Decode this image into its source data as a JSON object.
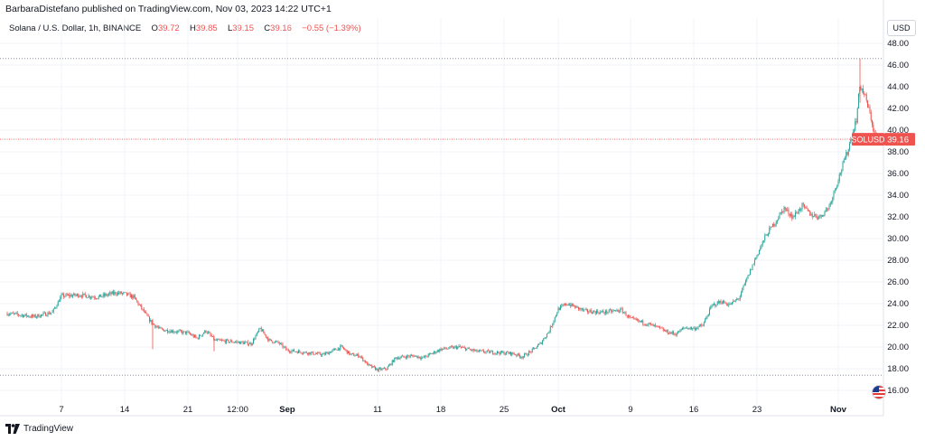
{
  "header": {
    "publisher": "BarbaraDistefano published on TradingView.com, Nov 03, 2023 14:22 UTC+1"
  },
  "legend": {
    "symbol": "Solana / U.S. Dollar, 1h, BINANCE",
    "o_label": "O",
    "o_value": "39.72",
    "h_label": "H",
    "h_value": "39.85",
    "l_label": "L",
    "l_value": "39.15",
    "c_label": "C",
    "c_value": "39.16",
    "change": "−0.55 (−1.39%)"
  },
  "currency_button": "USD",
  "price_tag": {
    "symbol": "SOLUSD",
    "value": "39.16"
  },
  "brand": "TradingView",
  "icons": {
    "logo": "tradingview-logo-icon",
    "flag": "us-flag-icon"
  },
  "colors": {
    "up": "#26a69a",
    "down": "#ef5350",
    "grid": "#f0f3fa",
    "axis_text": "#131722",
    "price_line": "#ef5350",
    "dotted": "#787b86"
  },
  "chart_data": {
    "type": "candlestick",
    "timeframe": "1h",
    "y_axis": {
      "min": 15,
      "max": 48.5,
      "ticks": [
        16,
        18,
        20,
        22,
        24,
        26,
        28,
        30,
        32,
        34,
        36,
        38,
        40,
        42,
        44,
        46,
        48
      ],
      "tick_labels": [
        "16.00",
        "18.00",
        "20.00",
        "22.00",
        "24.00",
        "26.00",
        "28.00",
        "30.00",
        "32.00",
        "34.00",
        "36.00",
        "38.00",
        "40.00",
        "42.00",
        "44.00",
        "46.00",
        "48.00"
      ]
    },
    "x_axis": {
      "start_day": 1,
      "end_day": 98,
      "ticks": [
        {
          "day": 7,
          "label": "7",
          "bold": false
        },
        {
          "day": 14,
          "label": "14",
          "bold": false
        },
        {
          "day": 21,
          "label": "21",
          "bold": false
        },
        {
          "day": 26.5,
          "label": "12:00",
          "bold": false
        },
        {
          "day": 32,
          "label": "Sep",
          "bold": true
        },
        {
          "day": 42,
          "label": "11",
          "bold": false
        },
        {
          "day": 49,
          "label": "18",
          "bold": false
        },
        {
          "day": 56,
          "label": "25",
          "bold": false
        },
        {
          "day": 62,
          "label": "Oct",
          "bold": true
        },
        {
          "day": 70,
          "label": "9",
          "bold": false
        },
        {
          "day": 77,
          "label": "16",
          "bold": false
        },
        {
          "day": 84,
          "label": "23",
          "bold": false
        },
        {
          "day": 93,
          "label": "Nov",
          "bold": true
        }
      ]
    },
    "last_price": 39.16,
    "range_high": 46.6,
    "range_low": 17.4,
    "price_path": [
      [
        1,
        23.1
      ],
      [
        4,
        22.8
      ],
      [
        6,
        23.2
      ],
      [
        7,
        24.7
      ],
      [
        9,
        24.8
      ],
      [
        11,
        24.6
      ],
      [
        13,
        25.0
      ],
      [
        14,
        24.9
      ],
      [
        15,
        24.6
      ],
      [
        16,
        23.4
      ],
      [
        17,
        22.2
      ],
      [
        18,
        21.6
      ],
      [
        19,
        21.5
      ],
      [
        21,
        21.3
      ],
      [
        22,
        20.8
      ],
      [
        23,
        21.5
      ],
      [
        24,
        20.6
      ],
      [
        26,
        20.5
      ],
      [
        28,
        20.3
      ],
      [
        29,
        21.7
      ],
      [
        30,
        20.6
      ],
      [
        31,
        20.4
      ],
      [
        32,
        19.7
      ],
      [
        34,
        19.5
      ],
      [
        36,
        19.3
      ],
      [
        38,
        20.0
      ],
      [
        39,
        19.3
      ],
      [
        40,
        19.2
      ],
      [
        41,
        18.3
      ],
      [
        42,
        17.9
      ],
      [
        43,
        18.0
      ],
      [
        44,
        19.0
      ],
      [
        46,
        19.2
      ],
      [
        47,
        19.0
      ],
      [
        49,
        19.8
      ],
      [
        51,
        20.0
      ],
      [
        53,
        19.6
      ],
      [
        55,
        19.5
      ],
      [
        57,
        19.4
      ],
      [
        58,
        19.1
      ],
      [
        59,
        19.6
      ],
      [
        60,
        20.3
      ],
      [
        61,
        21.5
      ],
      [
        62,
        23.5
      ],
      [
        63,
        24.0
      ],
      [
        65,
        23.3
      ],
      [
        67,
        23.2
      ],
      [
        69,
        23.4
      ],
      [
        70,
        22.6
      ],
      [
        72,
        22.1
      ],
      [
        73,
        21.8
      ],
      [
        74,
        21.4
      ],
      [
        75,
        21.2
      ],
      [
        76,
        21.8
      ],
      [
        77,
        21.7
      ],
      [
        78,
        22.0
      ],
      [
        79,
        23.8
      ],
      [
        80,
        24.2
      ],
      [
        81,
        23.9
      ],
      [
        82,
        24.5
      ],
      [
        83,
        26.5
      ],
      [
        84,
        28.5
      ],
      [
        85,
        30.3
      ],
      [
        86,
        31.5
      ],
      [
        87,
        32.8
      ],
      [
        88,
        32.0
      ],
      [
        89,
        33.0
      ],
      [
        90,
        32.2
      ],
      [
        91,
        32.0
      ],
      [
        92,
        33.0
      ],
      [
        93,
        35.5
      ],
      [
        94,
        38.0
      ],
      [
        95,
        41.0
      ],
      [
        95.4,
        44.2
      ],
      [
        96,
        43.0
      ],
      [
        96.6,
        41.2
      ],
      [
        97,
        39.6
      ],
      [
        97.5,
        39.16
      ]
    ]
  }
}
